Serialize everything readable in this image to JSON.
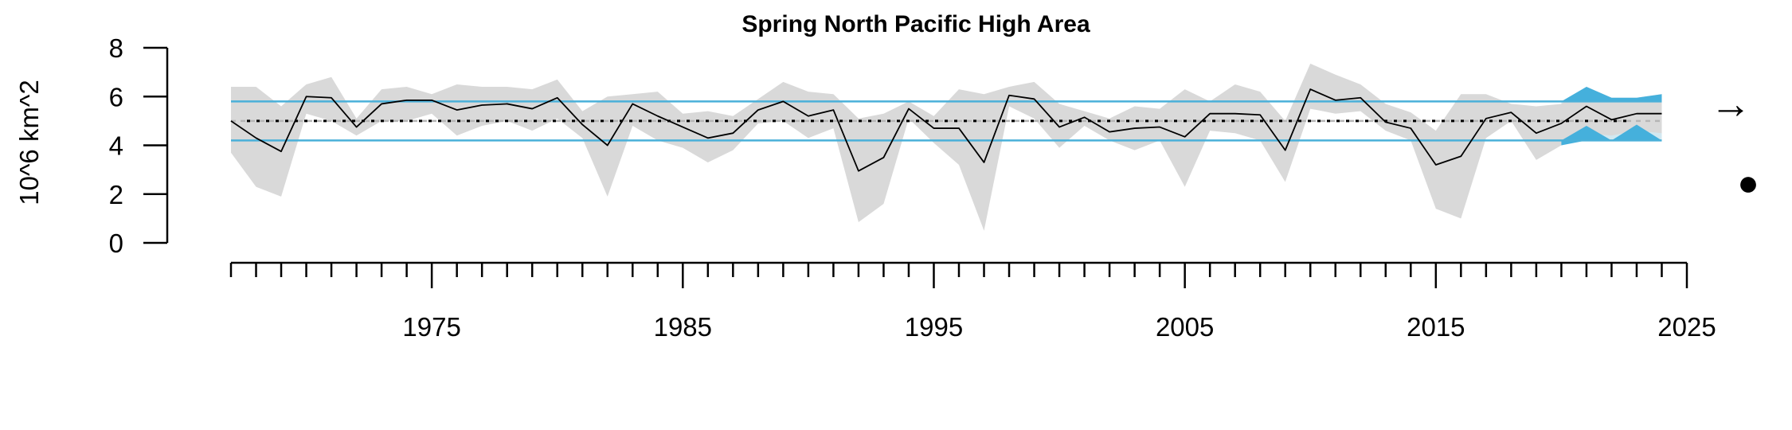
{
  "chart_data": {
    "type": "line",
    "title": "Spring North Pacific High Area",
    "ylabel": "10^6 km^2",
    "xlabel": "",
    "xlim": [
      1967,
      2025
    ],
    "ylim": [
      0,
      8
    ],
    "y_ticks": [
      "0",
      "2",
      "4",
      "6",
      "8"
    ],
    "x_tick_labels": [
      "1975",
      "1985",
      "1995",
      "2005",
      "2015",
      "2025"
    ],
    "mean": 5.0,
    "upper_sd": 5.8,
    "lower_sd": 4.2,
    "recent_window": [
      2020,
      2024
    ],
    "trend_symbol": "→",
    "status_symbol": "●",
    "colors": {
      "line": "#000000",
      "band": "#d9d9d9",
      "sd_lines": "#4ab0d9",
      "recent_fill": "#45b0dc",
      "recent_shade": "#d2e8f0",
      "mean_dotted": "#000000",
      "mean_dashed": "#b5b5b5"
    },
    "series": [
      {
        "x": [
          1967,
          1968,
          1969,
          1970,
          1971,
          1972,
          1973,
          1974,
          1975,
          1976,
          1977,
          1978,
          1979,
          1980,
          1981,
          1982,
          1983,
          1984,
          1985,
          1986,
          1987,
          1988,
          1989,
          1990,
          1991,
          1992,
          1993,
          1994,
          1995,
          1996,
          1997,
          1998,
          1999,
          2000,
          2001,
          2002,
          2003,
          2004,
          2005,
          2006,
          2007,
          2008,
          2009,
          2010,
          2011,
          2012,
          2013,
          2014,
          2015,
          2016,
          2017,
          2018,
          2019,
          2020,
          2021,
          2022,
          2023,
          2024
        ],
        "y": [
          5.0,
          4.3,
          3.75,
          6.0,
          5.95,
          4.75,
          5.7,
          5.85,
          5.85,
          5.45,
          5.65,
          5.7,
          5.5,
          5.95,
          4.85,
          4.0,
          5.7,
          5.2,
          4.75,
          4.3,
          4.5,
          5.45,
          5.8,
          5.2,
          5.45,
          2.95,
          3.5,
          5.5,
          4.7,
          4.7,
          3.3,
          6.05,
          5.9,
          4.75,
          5.15,
          4.55,
          4.7,
          4.75,
          4.35,
          5.3,
          5.3,
          5.25,
          3.8,
          6.3,
          5.85,
          5.95,
          4.95,
          4.7,
          3.2,
          3.55,
          5.1,
          5.35,
          4.5,
          4.9,
          5.6,
          5.05,
          5.3,
          5.3
        ],
        "upper": [
          6.4,
          6.4,
          5.6,
          6.5,
          6.8,
          5.1,
          6.3,
          6.4,
          6.1,
          6.5,
          6.4,
          6.4,
          6.3,
          6.7,
          5.4,
          6.0,
          6.1,
          6.2,
          5.3,
          5.4,
          5.2,
          5.9,
          6.6,
          6.2,
          6.1,
          5.1,
          5.3,
          5.8,
          5.2,
          6.3,
          6.1,
          6.4,
          6.6,
          5.7,
          5.4,
          5.1,
          5.6,
          5.5,
          6.3,
          5.8,
          6.5,
          6.2,
          5.0,
          7.35,
          6.9,
          6.5,
          5.7,
          5.35,
          4.6,
          6.1,
          6.1,
          5.7,
          5.6,
          5.7,
          6.4,
          5.95,
          5.95,
          6.1
        ],
        "lower": [
          3.7,
          2.3,
          1.9,
          5.3,
          5.0,
          4.4,
          5.0,
          5.0,
          5.3,
          4.4,
          4.8,
          5.0,
          4.6,
          5.1,
          4.3,
          1.9,
          4.8,
          4.2,
          3.9,
          3.3,
          3.8,
          4.9,
          5.0,
          4.3,
          4.7,
          0.85,
          1.6,
          5.1,
          4.1,
          3.2,
          0.5,
          5.6,
          5.1,
          3.9,
          4.8,
          4.2,
          3.8,
          4.2,
          2.3,
          4.6,
          4.5,
          4.2,
          2.5,
          5.5,
          5.3,
          5.4,
          4.6,
          4.2,
          1.4,
          1.0,
          4.3,
          5.0,
          3.4,
          4.0,
          4.5,
          4.4,
          4.6,
          4.5
        ]
      }
    ]
  }
}
